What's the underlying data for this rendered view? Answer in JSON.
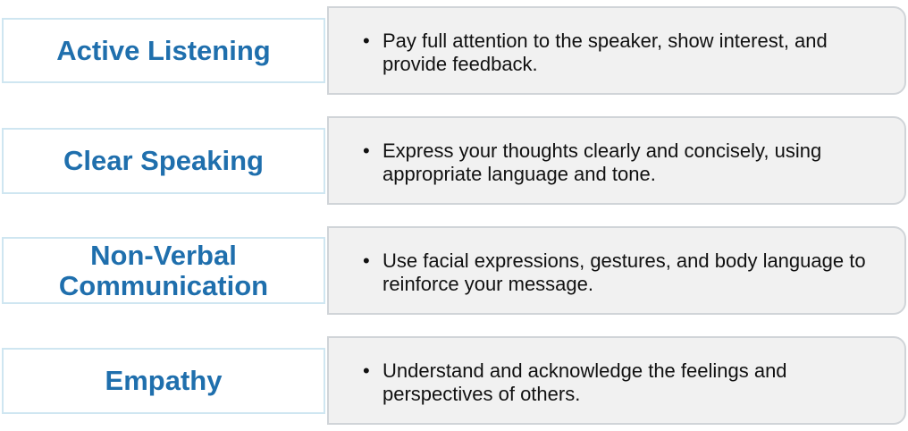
{
  "items": [
    {
      "title": "Active Listening",
      "description": "Pay full attention to the speaker, show interest, and provide feedback."
    },
    {
      "title": "Clear Speaking",
      "description": "Express your thoughts clearly and concisely, using appropriate language and tone."
    },
    {
      "title": "Non-Verbal Communication",
      "description": "Use facial expressions, gestures, and body language to reinforce your message."
    },
    {
      "title": "Empathy",
      "description": "Understand and acknowledge the feelings and perspectives of others."
    }
  ],
  "bullet": "•",
  "colors": {
    "title_text": "#1f6fad",
    "title_border": "#cfe6f1",
    "desc_background": "#f1f1f1",
    "desc_border": "#d0d4d8"
  }
}
